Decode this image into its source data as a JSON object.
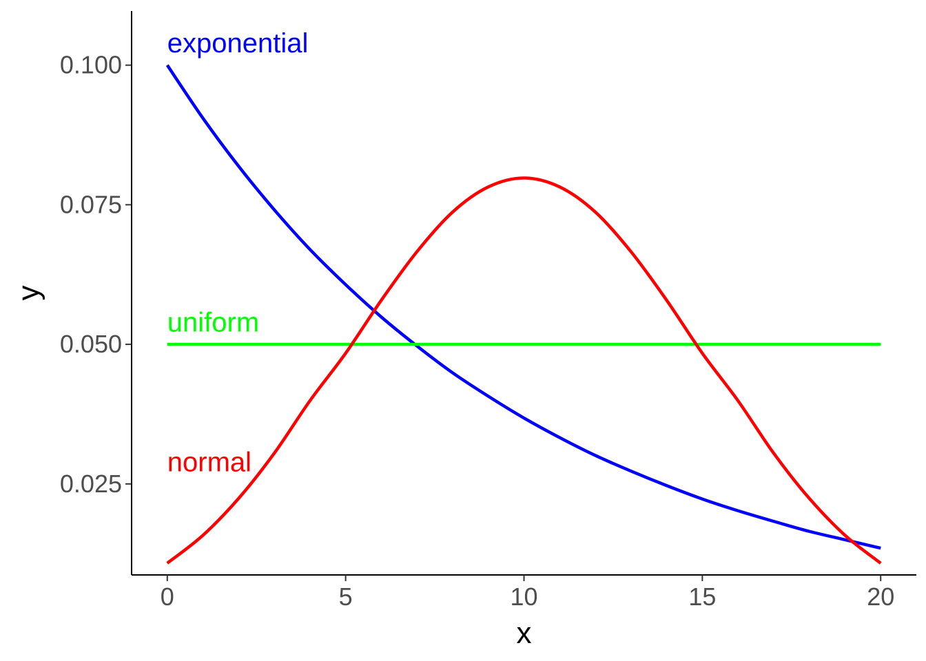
{
  "chart_data": {
    "type": "line",
    "title": "",
    "xlabel": "x",
    "ylabel": "y",
    "xlim": [
      -1,
      21
    ],
    "ylim": [
      0.0087,
      0.1097
    ],
    "x_ticks": [
      0,
      5,
      10,
      15,
      20
    ],
    "x_tick_labels": [
      "0",
      "5",
      "10",
      "15",
      "20"
    ],
    "y_ticks": [
      0.025,
      0.05,
      0.075,
      0.1
    ],
    "y_tick_labels": [
      "0.025",
      "0.050",
      "0.075",
      "0.100"
    ],
    "grid": false,
    "legend": "none",
    "series": [
      {
        "label": "exponential",
        "color": "#0000FF",
        "x": [
          0,
          1,
          2,
          3,
          4,
          5,
          6,
          7,
          8,
          9,
          10,
          11,
          12,
          13,
          14,
          15,
          16,
          17,
          18,
          19,
          20
        ],
        "y": [
          0.1,
          0.0905,
          0.0819,
          0.0741,
          0.067,
          0.0607,
          0.0549,
          0.0497,
          0.0449,
          0.0407,
          0.0368,
          0.0333,
          0.0301,
          0.0273,
          0.0247,
          0.0223,
          0.0202,
          0.0183,
          0.0165,
          0.015,
          0.0135
        ]
      },
      {
        "label": "uniform",
        "color": "#00FF00",
        "x": [
          0,
          20
        ],
        "y": [
          0.05,
          0.05
        ]
      },
      {
        "label": "normal",
        "color": "#FF0000",
        "x": [
          0,
          1,
          2,
          3,
          4,
          5,
          6,
          7,
          8,
          9,
          10,
          11,
          12,
          13,
          14,
          15,
          16,
          17,
          18,
          19,
          20
        ],
        "y": [
          0.0108,
          0.0158,
          0.0224,
          0.0305,
          0.0399,
          0.0484,
          0.0579,
          0.0666,
          0.0737,
          0.0782,
          0.0798,
          0.0782,
          0.0737,
          0.0666,
          0.0579,
          0.0484,
          0.0399,
          0.0305,
          0.0224,
          0.0158,
          0.0108
        ]
      }
    ],
    "annotations": [
      {
        "text": "exponential",
        "x": 0,
        "y": 0.104,
        "color": "#0000FF"
      },
      {
        "text": "uniform",
        "x": 0,
        "y": 0.054,
        "color": "#00FF00"
      },
      {
        "text": "normal",
        "x": 0,
        "y": 0.029,
        "color": "#FF0000"
      }
    ]
  }
}
